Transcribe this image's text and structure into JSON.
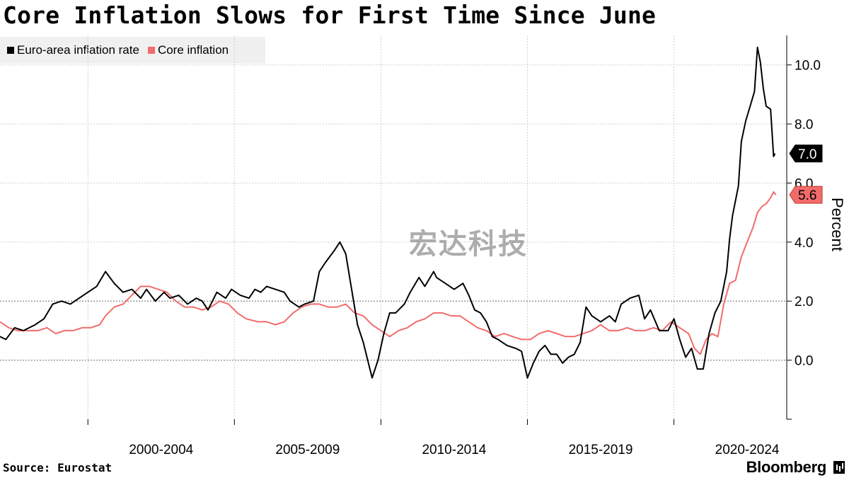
{
  "title": "Core Inflation Slows for First Time Since June",
  "source": "Source: Eurostat",
  "brand": "Bloomberg",
  "watermark": "宏达科技",
  "colors": {
    "headline": "#000000",
    "core": "#f26b6b",
    "grid": "#c8c8c8"
  },
  "chart_data": {
    "type": "line",
    "title": "Core Inflation Slows for First Time Since June",
    "ylabel": "Percent",
    "xlabel": "",
    "ylim": [
      -2,
      11
    ],
    "yticks": [
      0.0,
      2.0,
      4.0,
      6.0,
      8.0,
      10.0
    ],
    "xlim": [
      1997.0,
      2023.85
    ],
    "x_tick_labels": [
      "2000-2004",
      "2005-2009",
      "2010-2014",
      "2015-2019",
      "2020-2024"
    ],
    "legend_position": "top-left",
    "grid": true,
    "series": [
      {
        "name": "Euro-area inflation rate",
        "color": "#000000",
        "last_label": "7.0",
        "points": [
          [
            1997.0,
            0.8
          ],
          [
            1997.2,
            0.7
          ],
          [
            1997.5,
            1.1
          ],
          [
            1997.8,
            1.0
          ],
          [
            1998.2,
            1.2
          ],
          [
            1998.5,
            1.4
          ],
          [
            1998.8,
            1.9
          ],
          [
            1999.1,
            2.0
          ],
          [
            1999.4,
            1.9
          ],
          [
            1999.7,
            2.1
          ],
          [
            2000.0,
            2.3
          ],
          [
            2000.3,
            2.5
          ],
          [
            2000.6,
            3.0
          ],
          [
            2000.9,
            2.6
          ],
          [
            2001.2,
            2.3
          ],
          [
            2001.5,
            2.4
          ],
          [
            2001.8,
            2.1
          ],
          [
            2002.0,
            2.4
          ],
          [
            2002.3,
            2.0
          ],
          [
            2002.6,
            2.3
          ],
          [
            2002.8,
            2.1
          ],
          [
            2003.1,
            2.2
          ],
          [
            2003.4,
            1.9
          ],
          [
            2003.7,
            2.1
          ],
          [
            2003.9,
            2.0
          ],
          [
            2004.1,
            1.7
          ],
          [
            2004.4,
            2.3
          ],
          [
            2004.7,
            2.1
          ],
          [
            2004.9,
            2.4
          ],
          [
            2005.2,
            2.2
          ],
          [
            2005.5,
            2.1
          ],
          [
            2005.7,
            2.4
          ],
          [
            2005.9,
            2.3
          ],
          [
            2006.1,
            2.5
          ],
          [
            2006.4,
            2.4
          ],
          [
            2006.7,
            2.3
          ],
          [
            2006.9,
            2.0
          ],
          [
            2007.2,
            1.8
          ],
          [
            2007.4,
            1.9
          ],
          [
            2007.7,
            2.0
          ],
          [
            2007.9,
            3.0
          ],
          [
            2008.1,
            3.3
          ],
          [
            2008.4,
            3.7
          ],
          [
            2008.6,
            4.0
          ],
          [
            2008.8,
            3.6
          ],
          [
            2009.0,
            2.4
          ],
          [
            2009.2,
            1.2
          ],
          [
            2009.4,
            0.6
          ],
          [
            2009.6,
            -0.2
          ],
          [
            2009.7,
            -0.6
          ],
          [
            2009.9,
            0.0
          ],
          [
            2010.1,
            0.9
          ],
          [
            2010.3,
            1.6
          ],
          [
            2010.5,
            1.6
          ],
          [
            2010.8,
            1.9
          ],
          [
            2011.0,
            2.3
          ],
          [
            2011.3,
            2.8
          ],
          [
            2011.5,
            2.5
          ],
          [
            2011.8,
            3.0
          ],
          [
            2011.9,
            2.8
          ],
          [
            2012.2,
            2.6
          ],
          [
            2012.5,
            2.4
          ],
          [
            2012.8,
            2.6
          ],
          [
            2013.0,
            2.2
          ],
          [
            2013.2,
            1.7
          ],
          [
            2013.4,
            1.6
          ],
          [
            2013.6,
            1.3
          ],
          [
            2013.8,
            0.8
          ],
          [
            2014.0,
            0.7
          ],
          [
            2014.3,
            0.5
          ],
          [
            2014.6,
            0.4
          ],
          [
            2014.8,
            0.3
          ],
          [
            2015.0,
            -0.6
          ],
          [
            2015.2,
            -0.1
          ],
          [
            2015.4,
            0.3
          ],
          [
            2015.6,
            0.5
          ],
          [
            2015.8,
            0.2
          ],
          [
            2016.0,
            0.2
          ],
          [
            2016.2,
            -0.1
          ],
          [
            2016.4,
            0.1
          ],
          [
            2016.6,
            0.2
          ],
          [
            2016.8,
            0.6
          ],
          [
            2017.0,
            1.8
          ],
          [
            2017.2,
            1.5
          ],
          [
            2017.5,
            1.3
          ],
          [
            2017.8,
            1.5
          ],
          [
            2018.0,
            1.3
          ],
          [
            2018.2,
            1.9
          ],
          [
            2018.5,
            2.1
          ],
          [
            2018.8,
            2.2
          ],
          [
            2019.0,
            1.4
          ],
          [
            2019.2,
            1.7
          ],
          [
            2019.5,
            1.0
          ],
          [
            2019.8,
            1.0
          ],
          [
            2020.0,
            1.4
          ],
          [
            2020.2,
            0.7
          ],
          [
            2020.4,
            0.1
          ],
          [
            2020.6,
            0.4
          ],
          [
            2020.8,
            -0.3
          ],
          [
            2021.0,
            -0.3
          ],
          [
            2021.2,
            0.9
          ],
          [
            2021.4,
            1.6
          ],
          [
            2021.6,
            2.0
          ],
          [
            2021.8,
            3.0
          ],
          [
            2021.9,
            4.1
          ],
          [
            2022.0,
            4.9
          ],
          [
            2022.2,
            5.9
          ],
          [
            2022.3,
            7.4
          ],
          [
            2022.45,
            8.1
          ],
          [
            2022.6,
            8.6
          ],
          [
            2022.75,
            9.1
          ],
          [
            2022.85,
            10.6
          ],
          [
            2022.95,
            10.1
          ],
          [
            2023.05,
            9.2
          ],
          [
            2023.15,
            8.6
          ],
          [
            2023.3,
            8.5
          ],
          [
            2023.4,
            6.9
          ],
          [
            2023.45,
            7.0
          ]
        ]
      },
      {
        "name": "Core inflation",
        "color": "#f26b6b",
        "last_label": "5.6",
        "points": [
          [
            1997.0,
            1.3
          ],
          [
            1997.3,
            1.1
          ],
          [
            1997.6,
            1.0
          ],
          [
            1998.0,
            1.0
          ],
          [
            1998.3,
            1.0
          ],
          [
            1998.6,
            1.1
          ],
          [
            1998.9,
            0.9
          ],
          [
            1999.2,
            1.0
          ],
          [
            1999.5,
            1.0
          ],
          [
            1999.8,
            1.1
          ],
          [
            2000.1,
            1.1
          ],
          [
            2000.4,
            1.2
          ],
          [
            2000.6,
            1.5
          ],
          [
            2000.9,
            1.8
          ],
          [
            2001.2,
            1.9
          ],
          [
            2001.5,
            2.2
          ],
          [
            2001.8,
            2.5
          ],
          [
            2002.1,
            2.5
          ],
          [
            2002.4,
            2.4
          ],
          [
            2002.7,
            2.3
          ],
          [
            2003.0,
            2.0
          ],
          [
            2003.3,
            1.8
          ],
          [
            2003.6,
            1.8
          ],
          [
            2003.9,
            1.7
          ],
          [
            2004.2,
            1.8
          ],
          [
            2004.5,
            2.0
          ],
          [
            2004.8,
            1.9
          ],
          [
            2005.1,
            1.6
          ],
          [
            2005.4,
            1.4
          ],
          [
            2005.8,
            1.3
          ],
          [
            2006.1,
            1.3
          ],
          [
            2006.4,
            1.2
          ],
          [
            2006.7,
            1.3
          ],
          [
            2007.0,
            1.6
          ],
          [
            2007.3,
            1.8
          ],
          [
            2007.6,
            1.9
          ],
          [
            2007.9,
            1.9
          ],
          [
            2008.2,
            1.8
          ],
          [
            2008.5,
            1.8
          ],
          [
            2008.8,
            1.9
          ],
          [
            2009.1,
            1.6
          ],
          [
            2009.4,
            1.5
          ],
          [
            2009.7,
            1.2
          ],
          [
            2010.0,
            1.0
          ],
          [
            2010.3,
            0.8
          ],
          [
            2010.6,
            1.0
          ],
          [
            2010.9,
            1.1
          ],
          [
            2011.2,
            1.3
          ],
          [
            2011.5,
            1.4
          ],
          [
            2011.8,
            1.6
          ],
          [
            2012.1,
            1.6
          ],
          [
            2012.4,
            1.5
          ],
          [
            2012.7,
            1.5
          ],
          [
            2013.0,
            1.3
          ],
          [
            2013.3,
            1.1
          ],
          [
            2013.6,
            1.0
          ],
          [
            2013.9,
            0.8
          ],
          [
            2014.2,
            0.9
          ],
          [
            2014.5,
            0.8
          ],
          [
            2014.8,
            0.7
          ],
          [
            2015.1,
            0.7
          ],
          [
            2015.4,
            0.9
          ],
          [
            2015.7,
            1.0
          ],
          [
            2016.0,
            0.9
          ],
          [
            2016.3,
            0.8
          ],
          [
            2016.6,
            0.8
          ],
          [
            2016.9,
            0.9
          ],
          [
            2017.2,
            1.0
          ],
          [
            2017.5,
            1.2
          ],
          [
            2017.8,
            1.0
          ],
          [
            2018.1,
            1.0
          ],
          [
            2018.4,
            1.1
          ],
          [
            2018.7,
            1.0
          ],
          [
            2019.0,
            1.0
          ],
          [
            2019.3,
            1.1
          ],
          [
            2019.6,
            1.0
          ],
          [
            2019.9,
            1.3
          ],
          [
            2020.2,
            1.1
          ],
          [
            2020.5,
            0.9
          ],
          [
            2020.7,
            0.4
          ],
          [
            2020.9,
            0.2
          ],
          [
            2021.1,
            0.7
          ],
          [
            2021.3,
            0.9
          ],
          [
            2021.5,
            0.8
          ],
          [
            2021.7,
            1.9
          ],
          [
            2021.9,
            2.6
          ],
          [
            2022.1,
            2.7
          ],
          [
            2022.3,
            3.5
          ],
          [
            2022.5,
            4.0
          ],
          [
            2022.7,
            4.5
          ],
          [
            2022.85,
            5.0
          ],
          [
            2023.0,
            5.2
          ],
          [
            2023.15,
            5.3
          ],
          [
            2023.3,
            5.5
          ],
          [
            2023.4,
            5.7
          ],
          [
            2023.48,
            5.6
          ]
        ]
      }
    ]
  }
}
